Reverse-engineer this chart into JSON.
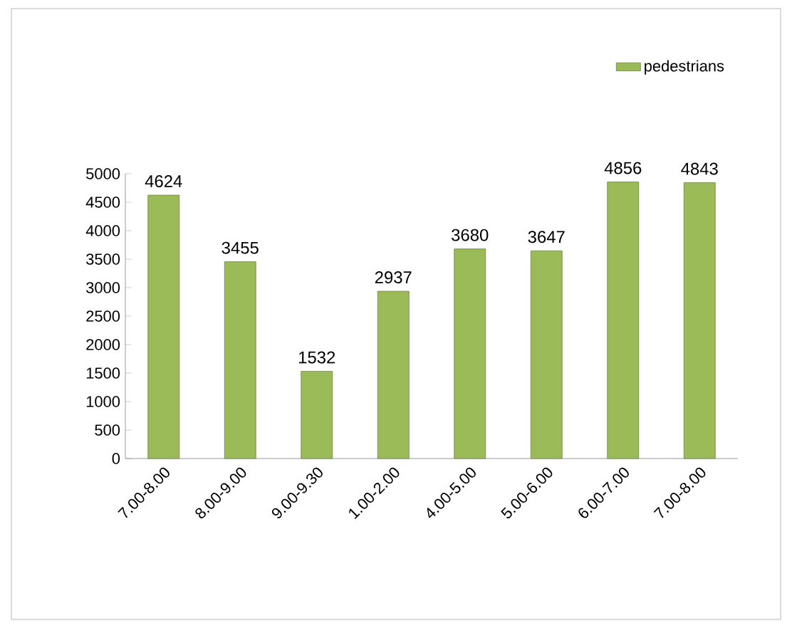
{
  "chart_data": {
    "type": "bar",
    "categories": [
      "7.00-8.00",
      "8.00-9.00",
      "9.00-9.30",
      "1.00-2.00",
      "4.00-5.00",
      "5.00-6.00",
      "6.00-7.00",
      "7.00-8.00"
    ],
    "series": [
      {
        "name": "pedestrians",
        "color": "#9bbb59",
        "values": [
          4624,
          3455,
          1532,
          2937,
          3680,
          3647,
          4856,
          4843
        ]
      }
    ],
    "ylim": [
      0,
      5000
    ],
    "yticks": [
      0,
      500,
      1000,
      1500,
      2000,
      2500,
      3000,
      3500,
      4000,
      4500,
      5000
    ],
    "data_labels": true,
    "legend": "top right",
    "grid": false
  }
}
